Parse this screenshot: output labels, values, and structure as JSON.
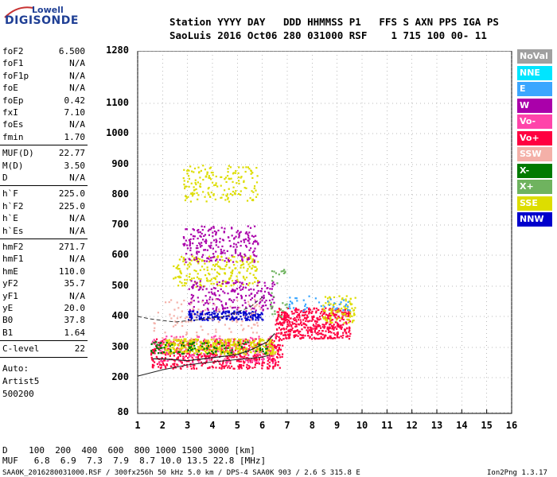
{
  "logo": {
    "line1": "Lowell",
    "line2": "DIGISONDE"
  },
  "header": {
    "line1": "Station YYYY DAY   DDD HHMMSS P1   FFS S AXN PPS IGA PS",
    "line2": "SaoLuis 2016 Oct06 280 031000 RSF    1 715 100 00- 11"
  },
  "params": {
    "group1": [
      {
        "k": "foF2",
        "v": "6.500"
      },
      {
        "k": "foF1",
        "v": "N/A"
      },
      {
        "k": "foF1p",
        "v": "N/A"
      },
      {
        "k": "foE",
        "v": "N/A"
      },
      {
        "k": "foEp",
        "v": "0.42"
      },
      {
        "k": "fxI",
        "v": "7.10"
      },
      {
        "k": "foEs",
        "v": "N/A"
      },
      {
        "k": "fmin",
        "v": "1.70"
      }
    ],
    "group2": [
      {
        "k": "MUF(D)",
        "v": "22.77"
      },
      {
        "k": "M(D)",
        "v": "3.50"
      },
      {
        "k": "D",
        "v": "N/A"
      }
    ],
    "group3": [
      {
        "k": "h`F",
        "v": "225.0"
      },
      {
        "k": "h`F2",
        "v": "225.0"
      },
      {
        "k": "h`E",
        "v": "N/A"
      },
      {
        "k": "h`Es",
        "v": "N/A"
      }
    ],
    "group4": [
      {
        "k": "hmF2",
        "v": "271.7"
      },
      {
        "k": "hmF1",
        "v": "N/A"
      },
      {
        "k": "hmE",
        "v": "110.0"
      },
      {
        "k": "yF2",
        "v": "35.7"
      },
      {
        "k": "yF1",
        "v": "N/A"
      },
      {
        "k": "yE",
        "v": "20.0"
      },
      {
        "k": "B0",
        "v": "37.8"
      },
      {
        "k": "B1",
        "v": "1.64"
      }
    ],
    "group5": [
      {
        "k": "C-level",
        "v": "22"
      }
    ],
    "auto": [
      "Auto:",
      "Artist5",
      "500200"
    ]
  },
  "legend": [
    {
      "label": "NoVal",
      "color": "#a0a0a0"
    },
    {
      "label": "NNE",
      "color": "#00e5ff"
    },
    {
      "label": "E",
      "color": "#3aa6ff"
    },
    {
      "label": "W",
      "color": "#aa00aa"
    },
    {
      "label": "Vo-",
      "color": "#ff44aa"
    },
    {
      "label": "Vo+",
      "color": "#ff0040"
    },
    {
      "label": "SSW",
      "color": "#f4b0a8"
    },
    {
      "label": "X-",
      "color": "#007a00"
    },
    {
      "label": "X+",
      "color": "#6fb35f"
    },
    {
      "label": "SSE",
      "color": "#dddd00"
    },
    {
      "label": "NNW",
      "color": "#0000cc"
    }
  ],
  "footer": {
    "d_row": "D    100  200  400  600  800 1000 1500 3000 [km]",
    "muf_row": "MUF   6.8  6.9  7.3  7.9  8.7 10.0 13.5 22.8 [MHz]",
    "file_line": "SAA0K_2016280031000.RSF / 300fx256h 50 kHz 5.0 km / DPS-4 SAA0K 903 / 2.6 S 315.8 E",
    "version": "Ion2Png 1.3.17"
  },
  "chart_data": {
    "type": "scatter",
    "xlim": [
      1,
      16
    ],
    "x_ticks": [
      "1",
      "2",
      "3",
      "4",
      "5",
      "6",
      "7",
      "8",
      "9",
      "10",
      "11",
      "12",
      "13",
      "14",
      "15",
      "16"
    ],
    "y_ticks": [
      "80",
      "200",
      "300",
      "400",
      "500",
      "600",
      "700",
      "800",
      "900",
      "1000",
      "1100",
      "1280"
    ],
    "yaxis_scale": "virtual height km, nonuniform: 80-200 compressed, 1100-1280 compressed",
    "grid": "dotted",
    "legend_placement": "right",
    "profile_curve": [
      [
        1.0,
        205
      ],
      [
        2.0,
        226
      ],
      [
        3.0,
        242
      ],
      [
        4.0,
        252
      ],
      [
        5.0,
        260
      ],
      [
        6.0,
        268
      ],
      [
        6.3,
        275
      ]
    ],
    "trace_curve": [
      [
        1.6,
        262
      ],
      [
        2.0,
        262
      ],
      [
        3.0,
        256
      ],
      [
        4.0,
        266
      ],
      [
        5.0,
        276
      ],
      [
        5.6,
        294
      ],
      [
        6.2,
        318
      ],
      [
        6.5,
        345
      ]
    ],
    "dashed_curve": [
      [
        1.0,
        400
      ],
      [
        1.5,
        392
      ],
      [
        2.5,
        382
      ],
      [
        3.5,
        390
      ],
      [
        4.5,
        400
      ],
      [
        5.5,
        430
      ],
      [
        6.1,
        470
      ]
    ],
    "clusters": [
      {
        "legend": "Vo+",
        "x": [
          1.5,
          6.8
        ],
        "y": [
          232,
          330
        ],
        "n": 600
      },
      {
        "legend": "Vo+",
        "x": [
          6.5,
          9.5
        ],
        "y": [
          330,
          430
        ],
        "n": 500
      },
      {
        "legend": "Vo-",
        "x": [
          1.5,
          6.5
        ],
        "y": [
          250,
          340
        ],
        "n": 160
      },
      {
        "legend": "SSE",
        "x": [
          2.0,
          6.5
        ],
        "y": [
          280,
          330
        ],
        "n": 350
      },
      {
        "legend": "SSE",
        "x": [
          2.4,
          5.8
        ],
        "y": [
          500,
          600
        ],
        "n": 220
      },
      {
        "legend": "SSE",
        "x": [
          2.8,
          5.8
        ],
        "y": [
          780,
          900
        ],
        "n": 170
      },
      {
        "legend": "SSE",
        "x": [
          8.4,
          9.7
        ],
        "y": [
          380,
          470
        ],
        "n": 90
      },
      {
        "legend": "W",
        "x": [
          2.8,
          5.8
        ],
        "y": [
          580,
          700
        ],
        "n": 220
      },
      {
        "legend": "W",
        "x": [
          3.0,
          6.5
        ],
        "y": [
          420,
          520
        ],
        "n": 200
      },
      {
        "legend": "NNW",
        "x": [
          3.0,
          6.0
        ],
        "y": [
          390,
          420
        ],
        "n": 200
      },
      {
        "legend": "X-",
        "x": [
          1.5,
          6.2
        ],
        "y": [
          280,
          320
        ],
        "n": 100
      },
      {
        "legend": "SSW",
        "x": [
          1.6,
          6.0
        ],
        "y": [
          320,
          460
        ],
        "n": 120
      },
      {
        "legend": "E",
        "x": [
          7.0,
          9.5
        ],
        "y": [
          420,
          470
        ],
        "n": 40
      },
      {
        "legend": "X+",
        "x": [
          6.3,
          7.0
        ],
        "y": [
          400,
          560
        ],
        "n": 30
      }
    ]
  }
}
